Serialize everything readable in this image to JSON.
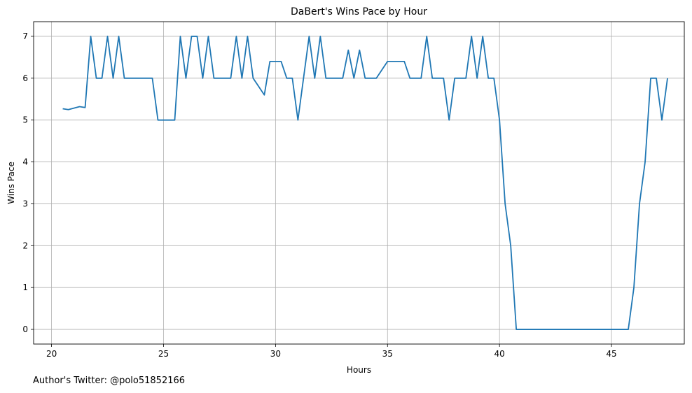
{
  "chart_data": {
    "type": "line",
    "title": "DaBert's Wins Pace by Hour",
    "xlabel": "Hours",
    "ylabel": "Wins Pace",
    "xlim": [
      19.2,
      48.25
    ],
    "ylim": [
      -0.35,
      7.35
    ],
    "xticks": [
      20,
      25,
      30,
      35,
      40,
      45
    ],
    "yticks": [
      0,
      1,
      2,
      3,
      4,
      5,
      6,
      7
    ],
    "grid": true,
    "line_color": "#1f77b4",
    "series": [
      {
        "x": [
          20.5,
          20.75,
          21.25,
          21.5,
          21.75,
          22,
          22.25,
          22.5,
          22.75,
          23,
          23.25,
          23.5,
          23.75,
          24,
          24.25,
          24.5,
          24.75,
          25,
          25.25,
          25.5,
          25.75,
          26,
          26.25,
          26.5,
          26.75,
          27,
          27.25,
          27.5,
          27.75,
          28,
          28.25,
          28.5,
          28.75,
          29,
          29.25,
          29.5,
          29.75,
          30,
          30.25,
          30.5,
          30.75,
          31,
          31.25,
          31.5,
          31.75,
          32,
          32.25,
          32.5,
          32.75,
          33,
          33.25,
          33.5,
          33.75,
          34,
          34.25,
          34.5,
          34.75,
          35,
          35.25,
          35.5,
          35.75,
          36,
          36.25,
          36.5,
          36.75,
          37,
          37.25,
          37.5,
          37.75,
          38,
          38.25,
          38.5,
          38.75,
          39,
          39.25,
          39.5,
          39.75,
          40,
          40.25,
          40.5,
          40.75,
          41,
          41.5,
          42,
          42.5,
          43,
          43.5,
          44,
          44.5,
          45,
          45.5,
          45.75,
          46,
          46.25,
          46.5,
          46.75,
          47,
          47.25,
          47.5
        ],
        "y": [
          5.27,
          5.25,
          5.32,
          5.3,
          7,
          6,
          6,
          7,
          6,
          7,
          6,
          6,
          6,
          6,
          6,
          6,
          5,
          5,
          5,
          5,
          7,
          6,
          7,
          7,
          6,
          7,
          6,
          6,
          6,
          6,
          7,
          6,
          7,
          6,
          5.8,
          5.6,
          6.4,
          6.4,
          6.4,
          6,
          6,
          5,
          6,
          7,
          6,
          7,
          6,
          6,
          6,
          6,
          6.67,
          6,
          6.67,
          6,
          6,
          6,
          6.2,
          6.4,
          6.4,
          6.4,
          6.4,
          6,
          6,
          6,
          7,
          6,
          6,
          6,
          5,
          6,
          6,
          6,
          7,
          6,
          7,
          6,
          6,
          5,
          3,
          2,
          0,
          0,
          0,
          0,
          0,
          0,
          0,
          0,
          0,
          0,
          0,
          0,
          1,
          3,
          4,
          6,
          6,
          5,
          6
        ]
      }
    ]
  },
  "footnote": "Author's Twitter: @polo51852166"
}
